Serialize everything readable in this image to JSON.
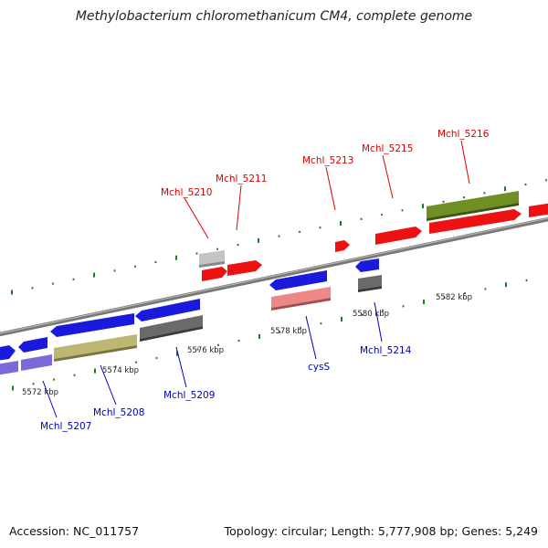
{
  "title": "Methylobacterium chloromethanicum CM4, complete genome",
  "footer": {
    "accession": "Accession: NC_011757",
    "summary": "Topology: circular; Length: 5,777,908 bp; Genes: 5,249"
  },
  "colors": {
    "backbone": "#888888",
    "tick": "#1d7a1d",
    "label_forward": "#dd0000",
    "label_reverse": "#0000bb"
  },
  "scale_labels": [
    "5572 kbp",
    "5574 kbp",
    "5576 kbp",
    "5578 kbp",
    "5580 kbp",
    "5582 kbp"
  ],
  "genes_forward": [
    {
      "name": "Mchl_5210",
      "color": "#ee1111"
    },
    {
      "name": "Mchl_5211",
      "color": "#ee1111"
    },
    {
      "name": "Mchl_5213",
      "color": "#ee1111"
    },
    {
      "name": "Mchl_5215",
      "color": "#ee1111"
    },
    {
      "name": "Mchl_5216",
      "color": "#ee1111"
    }
  ],
  "genes_reverse": [
    {
      "name": "Mchl_5207",
      "color": "#1a1add"
    },
    {
      "name": "Mchl_5208",
      "color": "#1a1add"
    },
    {
      "name": "Mchl_5209",
      "color": "#1a1add"
    },
    {
      "name": "cysS",
      "color": "#1a1add"
    },
    {
      "name": "Mchl_5214",
      "color": "#1a1add"
    }
  ]
}
